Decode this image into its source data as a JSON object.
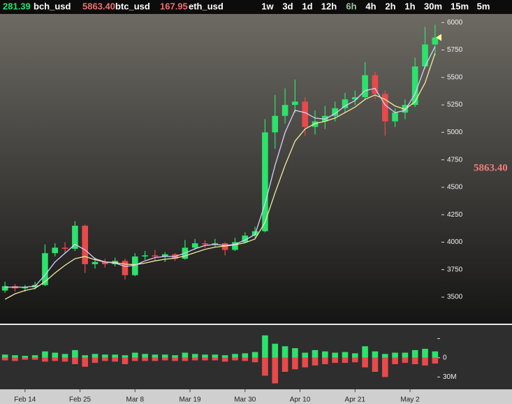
{
  "tickers": [
    {
      "price": "281.39",
      "symbol": "bch_usd",
      "color": "#2fe070"
    },
    {
      "price": "5863.40",
      "symbol": "btc_usd",
      "color": "#f07070"
    },
    {
      "price": "167.95",
      "symbol": "eth_usd",
      "color": "#f07070"
    }
  ],
  "timeframes": [
    "1w",
    "3d",
    "1d",
    "12h",
    "6h",
    "4h",
    "2h",
    "1h",
    "30m",
    "15m",
    "5m"
  ],
  "timeframe_colors": [
    "#ffffff",
    "#ffffff",
    "#ffffff",
    "#ffffff",
    "#9ec79e",
    "#ffffff",
    "#ffffff",
    "#ffffff",
    "#ffffff",
    "#ffffff",
    "#ffffff"
  ],
  "chart_data": {
    "type": "candlestick",
    "up_color": "#2be36b",
    "down_color": "#e84a4a",
    "ma_fast_color": "#d8d0ff",
    "ma_slow_color": "#f3eaa0",
    "xlim": [
      -0.5,
      43.5
    ],
    "xticks": [
      {
        "value": 2,
        "label": "Feb 14"
      },
      {
        "value": 7.5,
        "label": "Feb 25"
      },
      {
        "value": 13,
        "label": "Mar 8"
      },
      {
        "value": 18.5,
        "label": "Mar 19"
      },
      {
        "value": 24,
        "label": "Mar 30"
      },
      {
        "value": 29.5,
        "label": "Apr 10"
      },
      {
        "value": 35,
        "label": "Apr 21"
      },
      {
        "value": 40.5,
        "label": "May 2"
      }
    ],
    "ylim": [
      3265,
      6065
    ],
    "yticks": [
      3500,
      3750,
      4000,
      4250,
      4500,
      4750,
      5000,
      5250,
      5500,
      5750,
      6000
    ],
    "open": [
      3560,
      3600,
      3580,
      3590,
      3610,
      3900,
      3950,
      3940,
      4150,
      3800,
      3820,
      3800,
      3830,
      3700,
      3870,
      3880,
      3870,
      3890,
      3850,
      3950,
      3990,
      3980,
      3990,
      3930,
      4000,
      4060,
      4100,
      5000,
      5150,
      5250,
      5280,
      5050,
      5100,
      5150,
      5220,
      5300,
      5320,
      5520,
      5350,
      5100,
      5180,
      5250,
      5600,
      5800
    ],
    "high": [
      3640,
      3620,
      3610,
      3640,
      3980,
      3990,
      4000,
      4190,
      4160,
      3860,
      3850,
      3860,
      3850,
      3900,
      3920,
      3930,
      3910,
      3900,
      4020,
      4030,
      4020,
      4030,
      4000,
      4040,
      4090,
      4140,
      5120,
      5340,
      5400,
      5480,
      5320,
      5200,
      5240,
      5280,
      5360,
      5380,
      5640,
      5550,
      5380,
      5220,
      5300,
      5680,
      5960,
      5980
    ],
    "low": [
      3540,
      3550,
      3550,
      3570,
      3600,
      3870,
      3900,
      3920,
      3720,
      3760,
      3770,
      3780,
      3660,
      3690,
      3840,
      3830,
      3820,
      3830,
      3840,
      3930,
      3950,
      3960,
      3880,
      3920,
      3990,
      4040,
      4090,
      4850,
      5080,
      5180,
      4970,
      4980,
      5030,
      5100,
      5180,
      5250,
      5300,
      5300,
      4970,
      5050,
      5120,
      5230,
      5580,
      5700
    ],
    "close": [
      3600,
      3580,
      3590,
      3610,
      3900,
      3950,
      3940,
      4150,
      3800,
      3820,
      3800,
      3830,
      3700,
      3870,
      3880,
      3870,
      3890,
      3850,
      3950,
      3990,
      3980,
      3990,
      3930,
      4000,
      4060,
      4100,
      5000,
      5150,
      5250,
      5280,
      5050,
      5100,
      5150,
      5220,
      5300,
      5320,
      5520,
      5350,
      5100,
      5180,
      5250,
      5600,
      5800,
      5863.4
    ],
    "ma_fast": [
      3590,
      3590,
      3590,
      3600,
      3700,
      3820,
      3900,
      3980,
      3930,
      3850,
      3820,
      3810,
      3780,
      3790,
      3830,
      3860,
      3870,
      3870,
      3900,
      3940,
      3970,
      3980,
      3970,
      3980,
      4020,
      4070,
      4350,
      4700,
      5000,
      5200,
      5180,
      5130,
      5120,
      5170,
      5240,
      5290,
      5380,
      5400,
      5250,
      5180,
      5200,
      5350,
      5600,
      5780
    ],
    "ma_slow": [
      3480,
      3530,
      3560,
      3580,
      3640,
      3720,
      3790,
      3850,
      3870,
      3840,
      3820,
      3815,
      3800,
      3795,
      3810,
      3830,
      3845,
      3855,
      3875,
      3905,
      3935,
      3955,
      3965,
      3975,
      3995,
      4030,
      4180,
      4450,
      4700,
      4920,
      5030,
      5080,
      5100,
      5130,
      5180,
      5230,
      5300,
      5340,
      5300,
      5240,
      5210,
      5280,
      5450,
      5720
    ],
    "last_price": {
      "value": 5863.4,
      "label": "5863.40"
    },
    "volume": {
      "buy": [
        5,
        4,
        3,
        4,
        10,
        8,
        6,
        12,
        4,
        6,
        5,
        5,
        4,
        8,
        6,
        5,
        5,
        4,
        8,
        6,
        5,
        5,
        4,
        6,
        7,
        9,
        35,
        22,
        18,
        15,
        8,
        12,
        10,
        8,
        9,
        7,
        18,
        10,
        6,
        8,
        8,
        12,
        14,
        10
      ],
      "sell": [
        -4,
        -5,
        -3,
        -3,
        -6,
        -5,
        -6,
        -10,
        -14,
        -8,
        -5,
        -6,
        -10,
        -5,
        -5,
        -5,
        -4,
        -5,
        -5,
        -4,
        -4,
        -4,
        -6,
        -4,
        -5,
        -7,
        -28,
        -40,
        -22,
        -18,
        -15,
        -12,
        -10,
        -8,
        -8,
        -7,
        -15,
        -22,
        -30,
        -10,
        -8,
        -10,
        -12,
        -9
      ],
      "ylim": [
        -46,
        49
      ],
      "yticks": [
        0,
        {
          "value": -30,
          "label": "30M"
        }
      ],
      "minor_ticks": [
        30
      ]
    }
  }
}
